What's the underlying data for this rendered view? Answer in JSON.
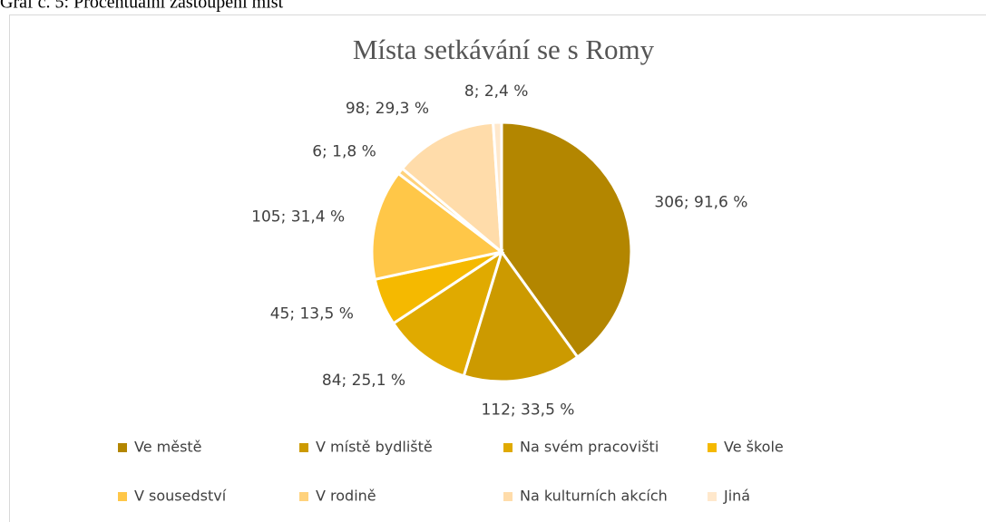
{
  "caption": "Graf č. 5: Procentuální zastoupení míst",
  "chart_data": {
    "type": "pie",
    "title": "Místa setkávání se s Romy",
    "categories": [
      "Ve městě",
      "V místě bydliště",
      "Na svém pracovišti",
      "Ve škole",
      "V sousedství",
      "V rodině",
      "Na kulturních akcích",
      "Jiná"
    ],
    "values": [
      306,
      112,
      84,
      45,
      105,
      6,
      98,
      8
    ],
    "value_labels": [
      "306; 91,6 %",
      "112; 33,5 %",
      "84; 25,1 %",
      "45; 13,5 %",
      "105; 31,4 %",
      "6; 1,8 %",
      "98; 29,3 %",
      "8; 2,4 %"
    ],
    "colors": [
      "#b38600",
      "#cc9a00",
      "#e0aa00",
      "#f5b900",
      "#ffc748",
      "#ffd27c",
      "#ffdcaa",
      "#ffe8cc"
    ],
    "legend": "bottom"
  }
}
